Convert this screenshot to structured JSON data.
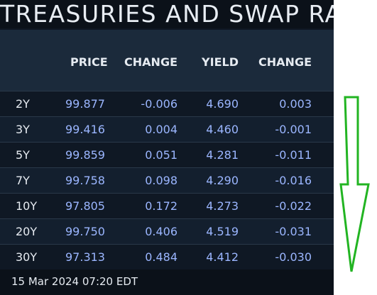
{
  "title": "TREASURIES AND SWAP RAT",
  "headers": [
    "",
    "PRICE",
    "CHANGE",
    "YIELD",
    "CHANGE"
  ],
  "rows": [
    {
      "tenor": "2Y",
      "price": "99.877",
      "price_change": "-0.006",
      "yield": "4.690",
      "yield_change": "0.003"
    },
    {
      "tenor": "3Y",
      "price": "99.416",
      "price_change": "0.004",
      "yield": "4.460",
      "yield_change": "-0.001"
    },
    {
      "tenor": "5Y",
      "price": "99.859",
      "price_change": "0.051",
      "yield": "4.281",
      "yield_change": "-0.011"
    },
    {
      "tenor": "7Y",
      "price": "99.758",
      "price_change": "0.098",
      "yield": "4.290",
      "yield_change": "-0.016"
    },
    {
      "tenor": "10Y",
      "price": "97.805",
      "price_change": "0.172",
      "yield": "4.273",
      "yield_change": "-0.022"
    },
    {
      "tenor": "20Y",
      "price": "99.750",
      "price_change": "0.406",
      "yield": "4.519",
      "yield_change": "-0.031"
    },
    {
      "tenor": "30Y",
      "price": "97.313",
      "price_change": "0.484",
      "yield": "4.412",
      "yield_change": "-0.030"
    }
  ],
  "footer": {
    "timestamp": "15 Mar 2024 07:20 EDT"
  },
  "colors": {
    "value_text": "#9bb6ff",
    "label_text": "#e6ebf1",
    "header_bg": "#1b2a3b",
    "arrow": "#22b422"
  },
  "annotation": {
    "icon": "down-arrow-icon"
  }
}
